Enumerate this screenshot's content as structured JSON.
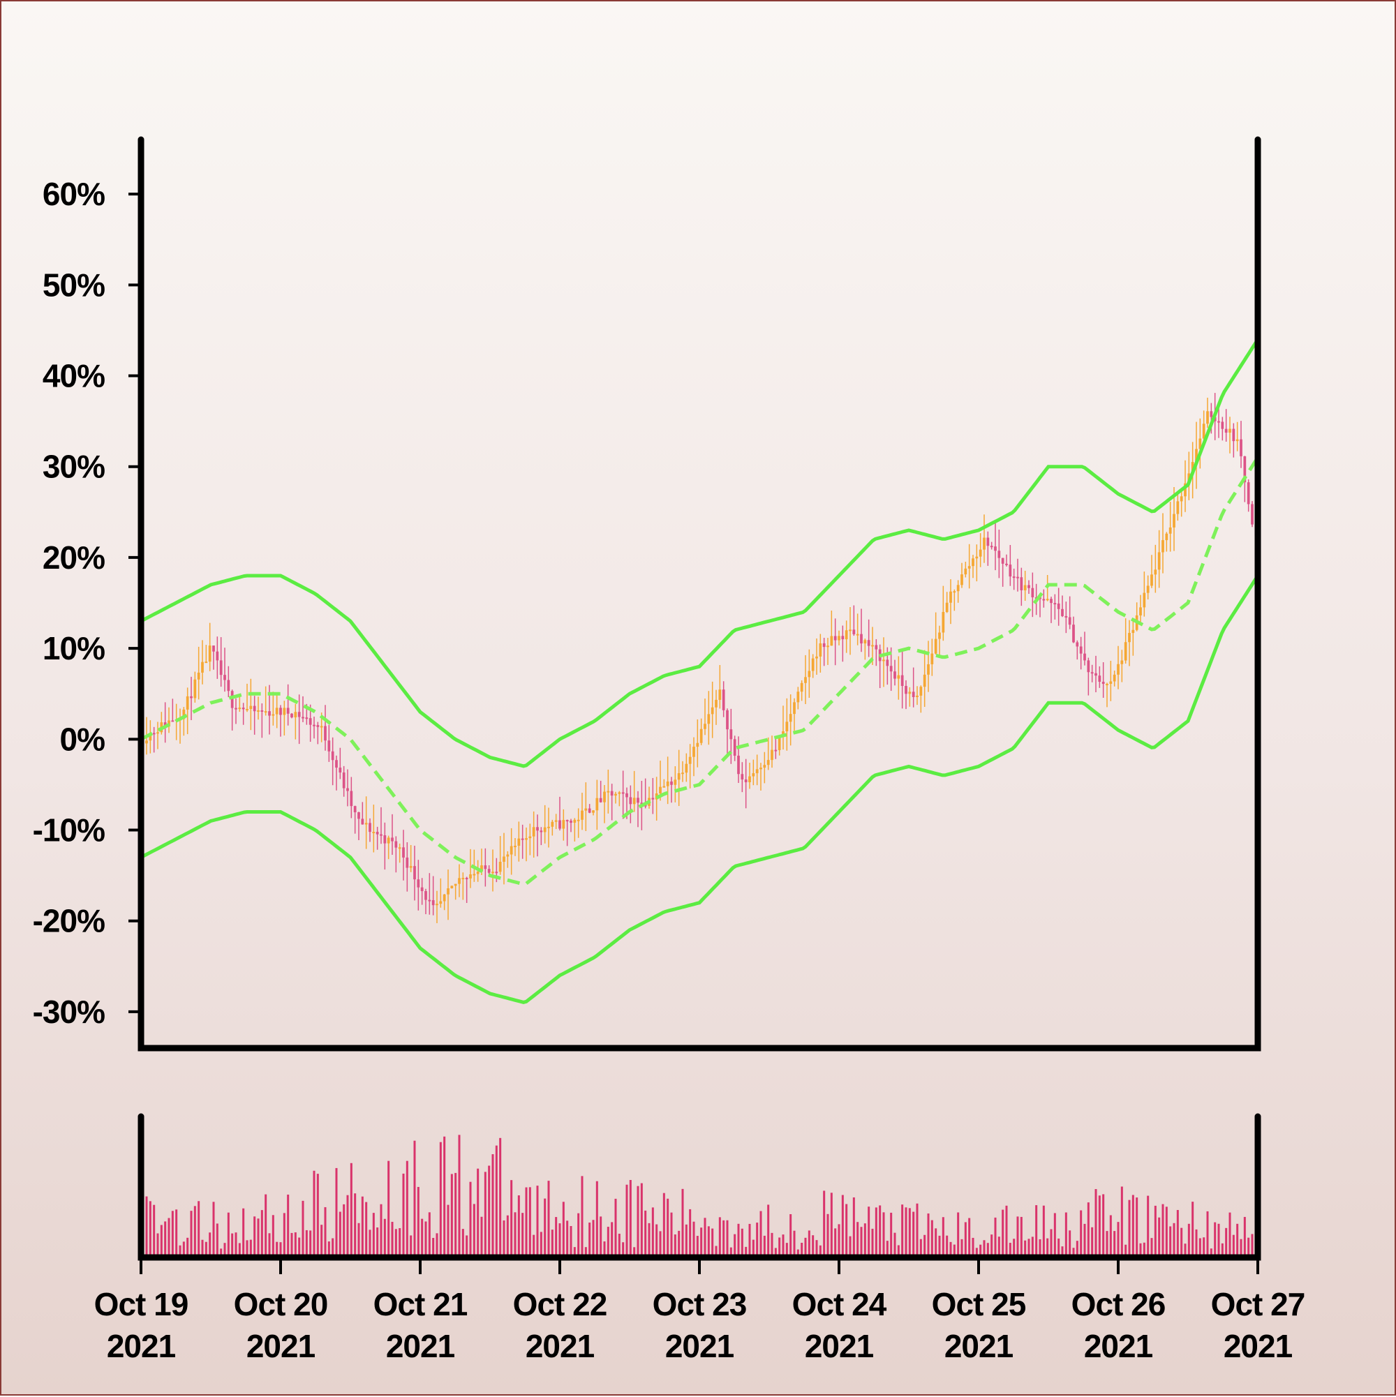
{
  "chart_data": [
    {
      "type": "candlestick",
      "title": "",
      "xlabel": "",
      "ylabel": "",
      "ylim": [
        -34,
        66
      ],
      "y_tick_format": "percent",
      "y_ticks": [
        60,
        50,
        40,
        30,
        20,
        10,
        0,
        -10,
        -20,
        -30
      ],
      "y_tick_labels": [
        "60%",
        "50%",
        "40%",
        "30%",
        "20%",
        "10%",
        "0%",
        "-10%",
        "-20%",
        "-30%"
      ],
      "x_range": [
        "2021-10-19",
        "2021-10-27"
      ],
      "x_ticks": [
        "2021-10-19",
        "2021-10-20",
        "2021-10-21",
        "2021-10-22",
        "2021-10-23",
        "2021-10-24",
        "2021-10-25",
        "2021-10-26",
        "2021-10-27"
      ],
      "x_tick_labels": [
        {
          "line1": "Oct 19",
          "line2": "2021"
        },
        {
          "line1": "Oct 20",
          "line2": "2021"
        },
        {
          "line1": "Oct 21",
          "line2": "2021"
        },
        {
          "line1": "Oct 22",
          "line2": "2021"
        },
        {
          "line1": "Oct 23",
          "line2": "2021"
        },
        {
          "line1": "Oct 24",
          "line2": "2021"
        },
        {
          "line1": "Oct 25",
          "line2": "2021"
        },
        {
          "line1": "Oct 26",
          "line2": "2021"
        },
        {
          "line1": "Oct 27",
          "line2": "2021"
        }
      ],
      "close_path": [
        [
          0.0,
          0
        ],
        [
          0.3,
          3
        ],
        [
          0.5,
          10
        ],
        [
          0.65,
          4
        ],
        [
          0.8,
          3
        ],
        [
          1.1,
          3
        ],
        [
          1.3,
          1
        ],
        [
          1.55,
          -9
        ],
        [
          1.85,
          -12
        ],
        [
          2.1,
          -19
        ],
        [
          2.3,
          -15
        ],
        [
          2.55,
          -14
        ],
        [
          2.8,
          -10
        ],
        [
          3.1,
          -9
        ],
        [
          3.35,
          -6
        ],
        [
          3.6,
          -7
        ],
        [
          3.85,
          -4
        ],
        [
          4.15,
          5
        ],
        [
          4.3,
          -5
        ],
        [
          4.55,
          -1
        ],
        [
          4.85,
          10
        ],
        [
          5.1,
          12
        ],
        [
          5.3,
          9
        ],
        [
          5.55,
          4
        ],
        [
          5.8,
          16
        ],
        [
          6.05,
          22
        ],
        [
          6.3,
          17
        ],
        [
          6.6,
          14
        ],
        [
          6.8,
          7
        ],
        [
          6.95,
          6
        ],
        [
          7.15,
          14
        ],
        [
          7.45,
          27
        ],
        [
          7.65,
          36
        ],
        [
          7.85,
          33
        ],
        [
          8.0,
          21
        ]
      ],
      "ma_path": [
        [
          0.0,
          0
        ],
        [
          0.25,
          2
        ],
        [
          0.5,
          4
        ],
        [
          0.75,
          5
        ],
        [
          1.0,
          5
        ],
        [
          1.25,
          3
        ],
        [
          1.5,
          0
        ],
        [
          1.75,
          -5
        ],
        [
          2.0,
          -10
        ],
        [
          2.25,
          -13
        ],
        [
          2.5,
          -15
        ],
        [
          2.75,
          -16
        ],
        [
          3.0,
          -13
        ],
        [
          3.25,
          -11
        ],
        [
          3.5,
          -8
        ],
        [
          3.75,
          -6
        ],
        [
          4.0,
          -5
        ],
        [
          4.25,
          -1
        ],
        [
          4.5,
          0
        ],
        [
          4.75,
          1
        ],
        [
          5.0,
          5
        ],
        [
          5.25,
          9
        ],
        [
          5.5,
          10
        ],
        [
          5.75,
          9
        ],
        [
          6.0,
          10
        ],
        [
          6.25,
          12
        ],
        [
          6.5,
          17
        ],
        [
          6.75,
          17
        ],
        [
          7.0,
          14
        ],
        [
          7.25,
          12
        ],
        [
          7.5,
          15
        ],
        [
          7.75,
          25
        ],
        [
          8.0,
          31
        ]
      ],
      "band_width": 13,
      "candle_count": 300,
      "colors": {
        "up_candle": "#f5a733",
        "down_candle": "#dc5387",
        "band_line": "#5bec42",
        "ma_line": "#7ef15a",
        "volume_bar": "#d9336b",
        "axis": "#000000"
      }
    },
    {
      "type": "bar",
      "title": "",
      "series_name": "",
      "x_range": [
        "2021-10-19",
        "2021-10-27"
      ],
      "bar_count": 300,
      "ylim": [
        0,
        150
      ],
      "values_profile": [
        [
          0.0,
          55
        ],
        [
          0.5,
          35
        ],
        [
          1.0,
          45
        ],
        [
          1.5,
          65
        ],
        [
          2.0,
          80
        ],
        [
          2.4,
          90
        ],
        [
          2.8,
          55
        ],
        [
          3.2,
          55
        ],
        [
          3.6,
          50
        ],
        [
          4.0,
          40
        ],
        [
          4.5,
          35
        ],
        [
          5.0,
          45
        ],
        [
          5.5,
          35
        ],
        [
          6.0,
          28
        ],
        [
          6.5,
          40
        ],
        [
          7.0,
          45
        ],
        [
          7.5,
          40
        ],
        [
          8.0,
          25
        ]
      ]
    }
  ]
}
